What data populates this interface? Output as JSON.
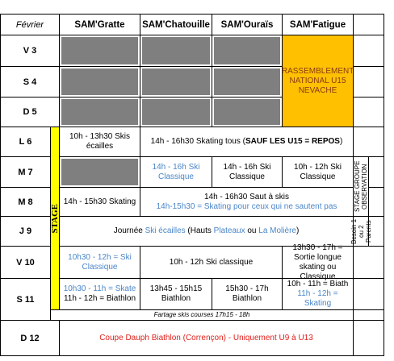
{
  "header": {
    "month": "Février",
    "groups": [
      "SAM'Gratte",
      "SAM'Chatouille",
      "SAM'Ouraïs",
      "SAM'Fatigue"
    ]
  },
  "days": [
    "V 3",
    "S 4",
    "D 5",
    "L 6",
    "M 7",
    "M 8",
    "J 9",
    "V 10",
    "S 11",
    "D 12"
  ],
  "stage": "STAGE",
  "notes": [
    "STAGE GROUPE OBSERVATION",
    "Besoin 1 ou 2 Parents"
  ],
  "cells": [
    [
      "RASSEMBLEMENT NATIONAL U15 NEVACHE"
    ],
    [
      "10h - 13h30 Skis écailles"
    ],
    [
      "14h - 16h30 Skating tous (",
      "SAUF LES U15 = REPOS",
      ")"
    ],
    [
      "14h - 16h Ski Classique"
    ],
    [
      "14h - 16h Ski Classique"
    ],
    [
      "10h - 12h Ski Classique"
    ],
    [
      "14h - 15h30 Skating"
    ],
    [
      "14h - 16h30 Saut à skis",
      "14h-15h30 = Skating pour ceux qui ne sautent pas"
    ],
    [
      "Journée ",
      "Ski écailles",
      " (Hauts ",
      "Plateaux",
      " ou ",
      "La Molière",
      ")"
    ],
    [
      "10h30 - 12h = Ski Classique"
    ],
    [
      "10h - 12h Ski classique"
    ],
    [
      "13h30 - 17h = Sortie longue skating ou Classique"
    ],
    [
      "10h30 - 11h = Skate",
      "11h - 12h = Biathlon"
    ],
    [
      "13h45 - 15h15 Biathlon"
    ],
    [
      "15h30 - 17h Biathlon"
    ],
    [
      "10h - 11h = Biath",
      "11h - 12h = Skating"
    ],
    [
      "Fartage skis courses 17h15 - 18h"
    ],
    [
      "Coupe Dauph Biathlon (Corrençon) - Uniquement U9 à U13"
    ]
  ]
}
